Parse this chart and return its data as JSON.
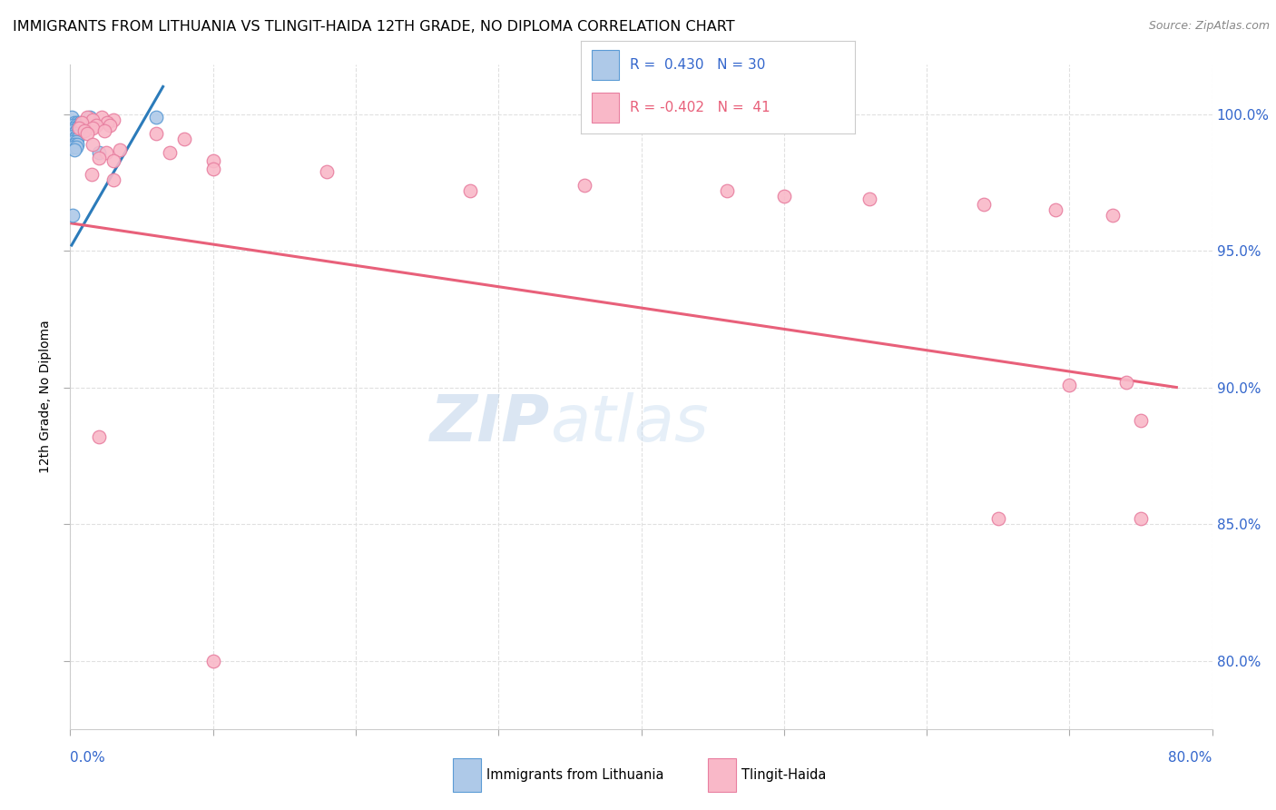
{
  "title": "IMMIGRANTS FROM LITHUANIA VS TLINGIT-HAIDA 12TH GRADE, NO DIPLOMA CORRELATION CHART",
  "source": "Source: ZipAtlas.com",
  "ylabel": "12th Grade, No Diploma",
  "yaxis_values": [
    1.0,
    0.95,
    0.9,
    0.85,
    0.8
  ],
  "xmin": 0.0,
  "xmax": 0.8,
  "ymin": 0.775,
  "ymax": 1.018,
  "blue_dots": [
    [
      0.001,
      0.999
    ],
    [
      0.014,
      0.999
    ],
    [
      0.003,
      0.997
    ],
    [
      0.005,
      0.997
    ],
    [
      0.007,
      0.997
    ],
    [
      0.002,
      0.996
    ],
    [
      0.004,
      0.996
    ],
    [
      0.006,
      0.996
    ],
    [
      0.003,
      0.995
    ],
    [
      0.005,
      0.995
    ],
    [
      0.007,
      0.995
    ],
    [
      0.002,
      0.994
    ],
    [
      0.004,
      0.994
    ],
    [
      0.006,
      0.994
    ],
    [
      0.003,
      0.993
    ],
    [
      0.005,
      0.993
    ],
    [
      0.002,
      0.992
    ],
    [
      0.004,
      0.992
    ],
    [
      0.003,
      0.991
    ],
    [
      0.005,
      0.991
    ],
    [
      0.002,
      0.99
    ],
    [
      0.004,
      0.99
    ],
    [
      0.003,
      0.989
    ],
    [
      0.005,
      0.989
    ],
    [
      0.002,
      0.988
    ],
    [
      0.004,
      0.988
    ],
    [
      0.003,
      0.987
    ],
    [
      0.02,
      0.986
    ],
    [
      0.002,
      0.963
    ],
    [
      0.06,
      0.999
    ]
  ],
  "pink_dots": [
    [
      0.012,
      0.999
    ],
    [
      0.022,
      0.999
    ],
    [
      0.016,
      0.998
    ],
    [
      0.03,
      0.998
    ],
    [
      0.008,
      0.997
    ],
    [
      0.026,
      0.997
    ],
    [
      0.018,
      0.996
    ],
    [
      0.028,
      0.996
    ],
    [
      0.006,
      0.995
    ],
    [
      0.016,
      0.995
    ],
    [
      0.01,
      0.994
    ],
    [
      0.024,
      0.994
    ],
    [
      0.012,
      0.993
    ],
    [
      0.06,
      0.993
    ],
    [
      0.08,
      0.991
    ],
    [
      0.016,
      0.989
    ],
    [
      0.035,
      0.987
    ],
    [
      0.025,
      0.986
    ],
    [
      0.07,
      0.986
    ],
    [
      0.02,
      0.984
    ],
    [
      0.03,
      0.983
    ],
    [
      0.1,
      0.983
    ],
    [
      0.1,
      0.98
    ],
    [
      0.18,
      0.979
    ],
    [
      0.015,
      0.978
    ],
    [
      0.03,
      0.976
    ],
    [
      0.36,
      0.974
    ],
    [
      0.28,
      0.972
    ],
    [
      0.46,
      0.972
    ],
    [
      0.5,
      0.97
    ],
    [
      0.56,
      0.969
    ],
    [
      0.64,
      0.967
    ],
    [
      0.69,
      0.965
    ],
    [
      0.73,
      0.963
    ],
    [
      0.74,
      0.902
    ],
    [
      0.7,
      0.901
    ],
    [
      0.75,
      0.888
    ],
    [
      0.02,
      0.882
    ],
    [
      0.65,
      0.852
    ],
    [
      0.75,
      0.852
    ],
    [
      0.1,
      0.8
    ]
  ],
  "blue_line_x": [
    0.001,
    0.065
  ],
  "blue_line_y": [
    0.952,
    1.01
  ],
  "pink_line_x": [
    0.001,
    0.775
  ],
  "pink_line_y": [
    0.96,
    0.9
  ],
  "watermark_zip": "ZIP",
  "watermark_atlas": "atlas",
  "blue_color": "#aec9e8",
  "pink_color": "#f9b8c8",
  "blue_edge_color": "#5b9bd5",
  "pink_edge_color": "#e87fa0",
  "blue_line_color": "#2b7bba",
  "pink_line_color": "#e8607a",
  "right_axis_color": "#3366cc",
  "grid_color": "#e0e0e0",
  "title_fontsize": 11.5,
  "source_fontsize": 9,
  "axis_label_fontsize": 10,
  "tick_fontsize": 11,
  "dot_size": 110
}
